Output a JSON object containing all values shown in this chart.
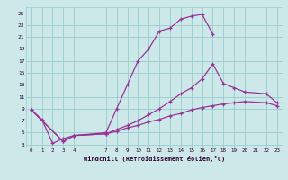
{
  "xlabel": "Windchill (Refroidissement éolien,°C)",
  "xlim": [
    -0.5,
    23.5
  ],
  "ylim": [
    2.5,
    26
  ],
  "xticks": [
    0,
    1,
    2,
    3,
    4,
    7,
    8,
    9,
    10,
    11,
    12,
    13,
    14,
    15,
    16,
    17,
    18,
    19,
    20,
    21,
    22,
    23
  ],
  "yticks": [
    3,
    5,
    7,
    9,
    11,
    13,
    15,
    17,
    19,
    21,
    23,
    25
  ],
  "bg_color": "#cce8e8",
  "grid_color": "#99cccc",
  "line_color": "#993399",
  "line1_x": [
    0,
    1,
    2,
    3,
    4,
    7,
    8,
    9,
    10,
    11,
    12,
    13,
    14,
    15,
    16,
    17
  ],
  "line1_y": [
    8.8,
    7.2,
    3.2,
    4.0,
    4.5,
    5.0,
    9.0,
    13.0,
    17.0,
    19.0,
    22.0,
    22.5,
    24.0,
    24.5,
    24.8,
    21.5
  ],
  "line2_x": [
    0,
    3,
    4,
    7,
    8,
    9,
    10,
    11,
    12,
    13,
    14,
    15,
    16,
    17,
    18,
    19,
    20,
    22,
    23
  ],
  "line2_y": [
    8.8,
    3.5,
    4.5,
    4.8,
    5.5,
    6.2,
    7.0,
    8.0,
    9.0,
    10.2,
    11.5,
    12.5,
    14.0,
    16.5,
    13.2,
    12.5,
    11.8,
    11.5,
    10.0
  ],
  "line3_x": [
    0,
    3,
    4,
    7,
    8,
    9,
    10,
    11,
    12,
    13,
    14,
    15,
    16,
    17,
    18,
    19,
    20,
    22,
    23
  ],
  "line3_y": [
    8.8,
    3.5,
    4.5,
    4.8,
    5.2,
    5.8,
    6.2,
    6.8,
    7.2,
    7.8,
    8.2,
    8.8,
    9.2,
    9.5,
    9.8,
    10.0,
    10.2,
    10.0,
    9.5
  ]
}
